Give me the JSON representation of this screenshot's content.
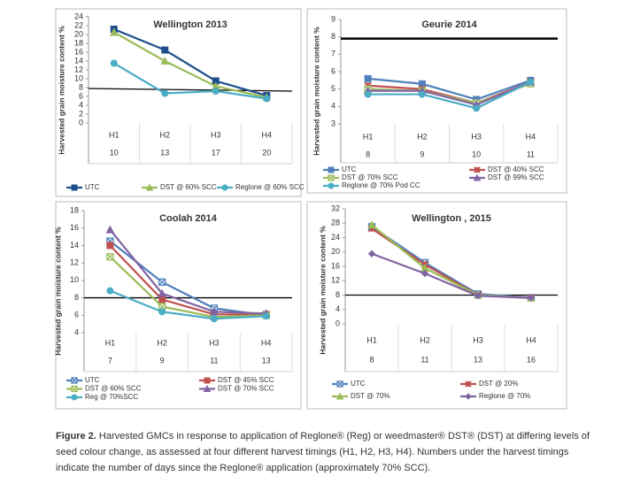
{
  "chart_data": [
    {
      "type": "line",
      "title": "Wellington 2013",
      "y_label": "Harvested grain moisture content %",
      "categories": [
        "H1",
        "H2",
        "H3",
        "H4"
      ],
      "days": [
        10,
        13,
        17,
        20
      ],
      "ylim": [
        0,
        24
      ],
      "yticks": [
        0,
        2,
        4,
        6,
        8,
        10,
        12,
        14,
        16,
        18,
        20,
        22,
        24
      ],
      "reference_line": [
        7.8,
        7.2
      ],
      "series": [
        {
          "name": "UTC",
          "color": "#1f4e8c",
          "marker": "square",
          "values": [
            21.2,
            16.5,
            9.5,
            6.2
          ]
        },
        {
          "name": "DST @ 60% SCC",
          "color": "#9bbb59",
          "marker": "triangle",
          "values": [
            20.5,
            14,
            8.3,
            5.8
          ]
        },
        {
          "name": "Reglone @ 60% SCC",
          "color": "#4bacc6",
          "marker": "circle",
          "values": [
            13.5,
            6.7,
            7.2,
            5.5
          ]
        }
      ]
    },
    {
      "type": "line",
      "title": "Geurie 2014",
      "y_label": "Harvested grain moisture content %",
      "categories": [
        "H1",
        "H2",
        "H3",
        "H4"
      ],
      "days": [
        8,
        9,
        10,
        11
      ],
      "ylim": [
        3,
        9
      ],
      "yticks": [
        3,
        4,
        5,
        6,
        7,
        8,
        9
      ],
      "reference_line": [
        7.9,
        7.9
      ],
      "series": [
        {
          "name": "UTC",
          "color": "#4f81bd",
          "marker": "square",
          "values": [
            5.6,
            5.3,
            4.4,
            5.5
          ]
        },
        {
          "name": "DST @ 40% SCC",
          "color": "#c0504d",
          "marker": "x",
          "values": [
            5.2,
            5.0,
            4.2,
            5.4
          ]
        },
        {
          "name": "DST @ 70% SCC",
          "color": "#9bbb59",
          "marker": "cross-square",
          "values": [
            5.0,
            4.9,
            4.2,
            5.3
          ]
        },
        {
          "name": "DST @ 99% SCC",
          "color": "#8064a2",
          "marker": "triangle",
          "values": [
            4.9,
            4.9,
            4.1,
            5.4
          ]
        },
        {
          "name": "Reglone @ 70% Pod CC",
          "color": "#4bacc6",
          "marker": "circle",
          "values": [
            4.7,
            4.7,
            3.9,
            5.4
          ]
        }
      ]
    },
    {
      "type": "line",
      "title": "Coolah 2014",
      "y_label": "Harvested grain moisture content %",
      "categories": [
        "H1",
        "H2",
        "H3",
        "H4"
      ],
      "days": [
        7,
        9,
        11,
        13
      ],
      "ylim": [
        4,
        18
      ],
      "yticks": [
        4,
        6,
        8,
        10,
        12,
        14,
        16,
        18
      ],
      "reference_line": [
        8,
        8
      ],
      "series": [
        {
          "name": "UTC",
          "color": "#4f81bd",
          "marker": "cross-square",
          "values": [
            14.5,
            9.8,
            6.8,
            6.0
          ]
        },
        {
          "name": "DST @ 45% SCC",
          "color": "#c0504d",
          "marker": "square",
          "values": [
            14.0,
            7.8,
            6.1,
            6.1
          ]
        },
        {
          "name": "DST @ 60% SCC",
          "color": "#9bbb59",
          "marker": "cross-square",
          "values": [
            12.7,
            7.0,
            5.8,
            6.0
          ]
        },
        {
          "name": "DST @ 70% SCC",
          "color": "#8064a2",
          "marker": "triangle",
          "values": [
            15.8,
            8.5,
            6.4,
            6.2
          ]
        },
        {
          "name": "Reg @ 70%SCC",
          "color": "#4bacc6",
          "marker": "circle",
          "values": [
            8.8,
            6.4,
            5.6,
            5.9
          ]
        }
      ]
    },
    {
      "type": "line",
      "title": "Wellington , 2015",
      "y_label": "Harvested grain moisture content %",
      "categories": [
        "H1",
        "H2",
        "H3",
        "H4"
      ],
      "days": [
        8,
        11,
        13,
        16
      ],
      "ylim": [
        0,
        32
      ],
      "yticks": [
        0,
        4,
        8,
        12,
        16,
        20,
        24,
        28,
        32
      ],
      "reference_line": [
        8,
        8
      ],
      "series": [
        {
          "name": "UTC",
          "color": "#4f81bd",
          "marker": "cross-square",
          "values": [
            27.0,
            17,
            8.3,
            7.3
          ]
        },
        {
          "name": "DST @ 20%",
          "color": "#c0504d",
          "marker": "x",
          "values": [
            26.5,
            16.5,
            8,
            7.2
          ]
        },
        {
          "name": "DST @ 70%",
          "color": "#9bbb59",
          "marker": "triangle",
          "values": [
            27.5,
            15.5,
            8,
            7.2
          ]
        },
        {
          "name": "Reglone @ 70%",
          "color": "#8064a2",
          "marker": "diamond",
          "values": [
            19.5,
            14,
            7.8,
            7.2
          ]
        }
      ]
    }
  ],
  "caption": {
    "label": "Figure 2.",
    "text": "Harvested GMCs in response to application of Reglone® (Reg) or weedmaster® DST® (DST) at differing levels of seed colour change, as assessed at four different harvest timings (H1, H2, H3, H4). Numbers under the harvest timings indicate the number of days since the Reglone® application (approximately 70% SCC)."
  }
}
